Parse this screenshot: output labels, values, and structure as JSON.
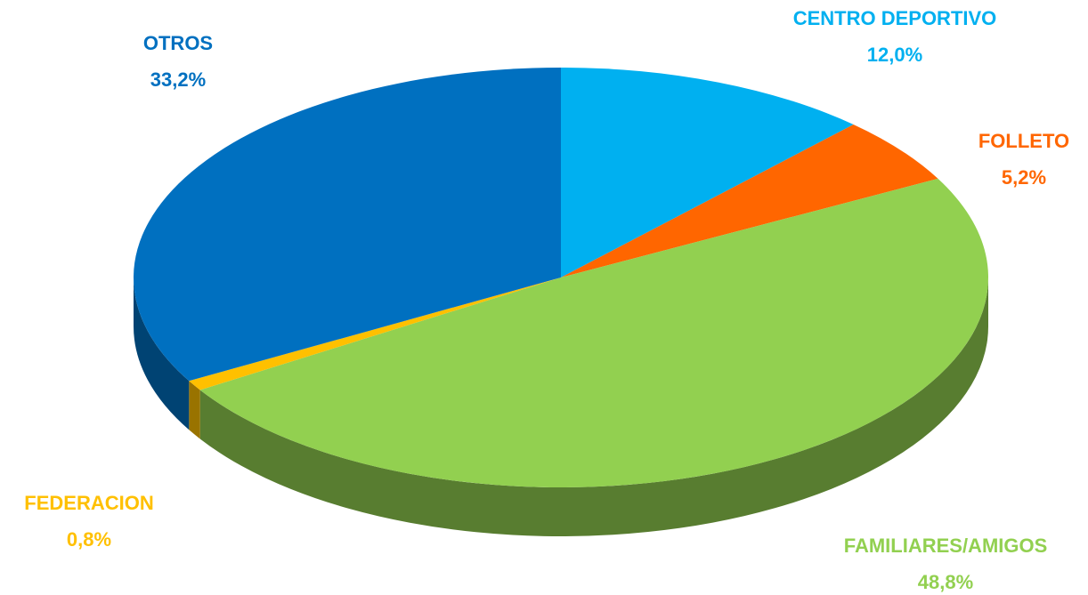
{
  "chart_data": {
    "type": "pie",
    "categories": [
      "CENTRO DEPORTIVO",
      "FOLLETO",
      "FAMILIARES/AMIGOS",
      "FEDERACION",
      "OTROS"
    ],
    "values": [
      12.0,
      5.2,
      48.8,
      0.8,
      33.2
    ],
    "value_labels": [
      "12,0%",
      "5,2%",
      "48,8%",
      "0,8%",
      "33,2%"
    ],
    "colors": [
      "#00b0f0",
      "#ff6600",
      "#92d050",
      "#ffc000",
      "#0070c0"
    ]
  }
}
